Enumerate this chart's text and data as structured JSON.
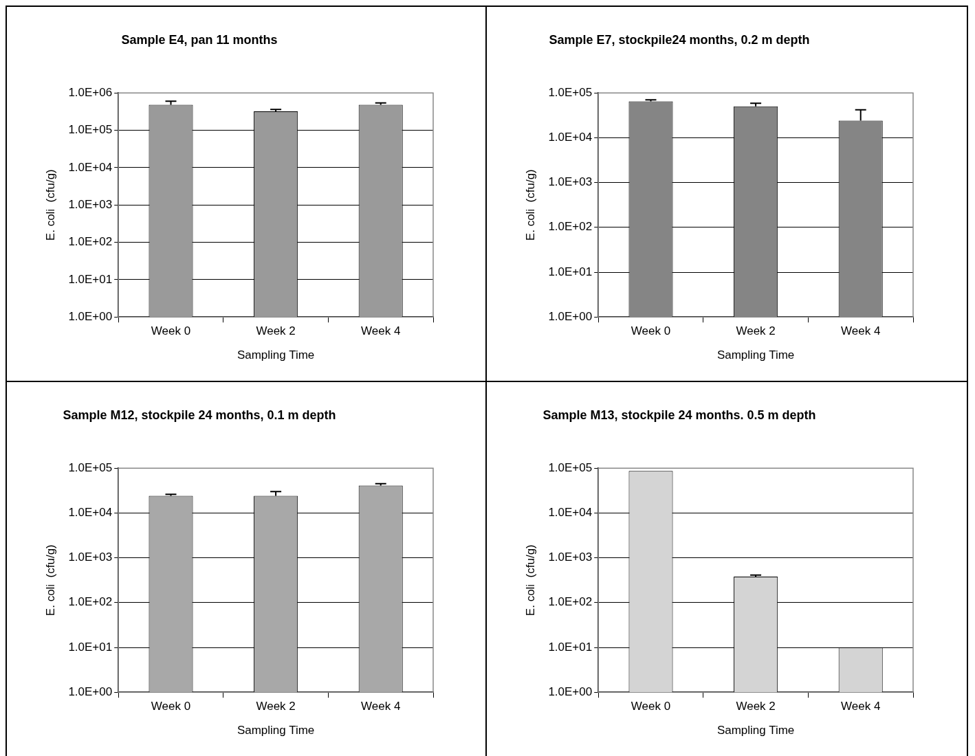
{
  "chart_data": [
    {
      "type": "bar",
      "title": "Sample E4, pan 11 months",
      "xlabel": "Sampling Time",
      "ylabel": "E. coli  (cfu/g)",
      "categories": [
        "Week 0",
        "Week 2",
        "Week 4"
      ],
      "values": [
        480000,
        320000,
        480000
      ],
      "errors": [
        [
          480000,
          600000
        ],
        [
          320000,
          360000
        ],
        [
          480000,
          540000
        ]
      ],
      "color": "#9a9a9a",
      "log": "y",
      "grid": "y",
      "ylim": [
        1,
        1000000
      ],
      "yticks": [
        {
          "value": 1,
          "label": "1.0E+00"
        },
        {
          "value": 10,
          "label": "1.0E+01"
        },
        {
          "value": 100,
          "label": "1.0E+02"
        },
        {
          "value": 1000,
          "label": "1.0E+03"
        },
        {
          "value": 10000,
          "label": "1.0E+04"
        },
        {
          "value": 100000,
          "label": "1.0E+05"
        },
        {
          "value": 1000000,
          "label": "1.0E+06"
        }
      ]
    },
    {
      "type": "bar",
      "title": "Sample E7, stockpile24 months, 0.2 m depth",
      "xlabel": "Sampling Time",
      "ylabel": "E. coli  (cfu/g)",
      "categories": [
        "Week 0",
        "Week 2",
        "Week 4"
      ],
      "values": [
        65000,
        50000,
        24000
      ],
      "errors": [
        [
          65000,
          70000
        ],
        [
          50000,
          59000
        ],
        [
          24000,
          42000
        ]
      ],
      "color": "#858585",
      "log": "y",
      "grid": "y",
      "ylim": [
        1,
        100000
      ],
      "yticks": [
        {
          "value": 1,
          "label": "1.0E+00"
        },
        {
          "value": 10,
          "label": "1.0E+01"
        },
        {
          "value": 100,
          "label": "1.0E+02"
        },
        {
          "value": 1000,
          "label": "1.0E+03"
        },
        {
          "value": 10000,
          "label": "1.0E+04"
        },
        {
          "value": 100000,
          "label": "1.0E+05"
        }
      ]
    },
    {
      "type": "bar",
      "title": "Sample M12, stockpile 24 months, 0.1 m depth",
      "xlabel": "Sampling Time",
      "ylabel": "E. coli  (cfu/g)",
      "categories": [
        "Week 0",
        "Week 2",
        "Week 4"
      ],
      "values": [
        24000,
        24000,
        41000
      ],
      "errors": [
        [
          24000,
          26000
        ],
        [
          24000,
          30000
        ],
        [
          41000,
          45000
        ]
      ],
      "color": "#a8a8a8",
      "log": "y",
      "grid": "y",
      "ylim": [
        1,
        100000
      ],
      "yticks": [
        {
          "value": 1,
          "label": "1.0E+00"
        },
        {
          "value": 10,
          "label": "1.0E+01"
        },
        {
          "value": 100,
          "label": "1.0E+02"
        },
        {
          "value": 1000,
          "label": "1.0E+03"
        },
        {
          "value": 10000,
          "label": "1.0E+04"
        },
        {
          "value": 100000,
          "label": "1.0E+05"
        }
      ]
    },
    {
      "type": "bar",
      "title": "Sample M13, stockpile 24 months. 0.5 m depth",
      "xlabel": "Sampling Time",
      "ylabel": "E. coli  (cfu/g)",
      "categories": [
        "Week 0",
        "Week 2",
        "Week 4"
      ],
      "values": [
        87000,
        380,
        10
      ],
      "errors": [
        null,
        [
          380,
          410
        ],
        null
      ],
      "color": "#d4d4d4",
      "log": "y",
      "grid": "y",
      "ylim": [
        1,
        100000
      ],
      "yticks": [
        {
          "value": 1,
          "label": "1.0E+00"
        },
        {
          "value": 10,
          "label": "1.0E+01"
        },
        {
          "value": 100,
          "label": "1.0E+02"
        },
        {
          "value": 1000,
          "label": "1.0E+03"
        },
        {
          "value": 10000,
          "label": "1.0E+04"
        },
        {
          "value": 100000,
          "label": "1.0E+05"
        }
      ]
    }
  ]
}
